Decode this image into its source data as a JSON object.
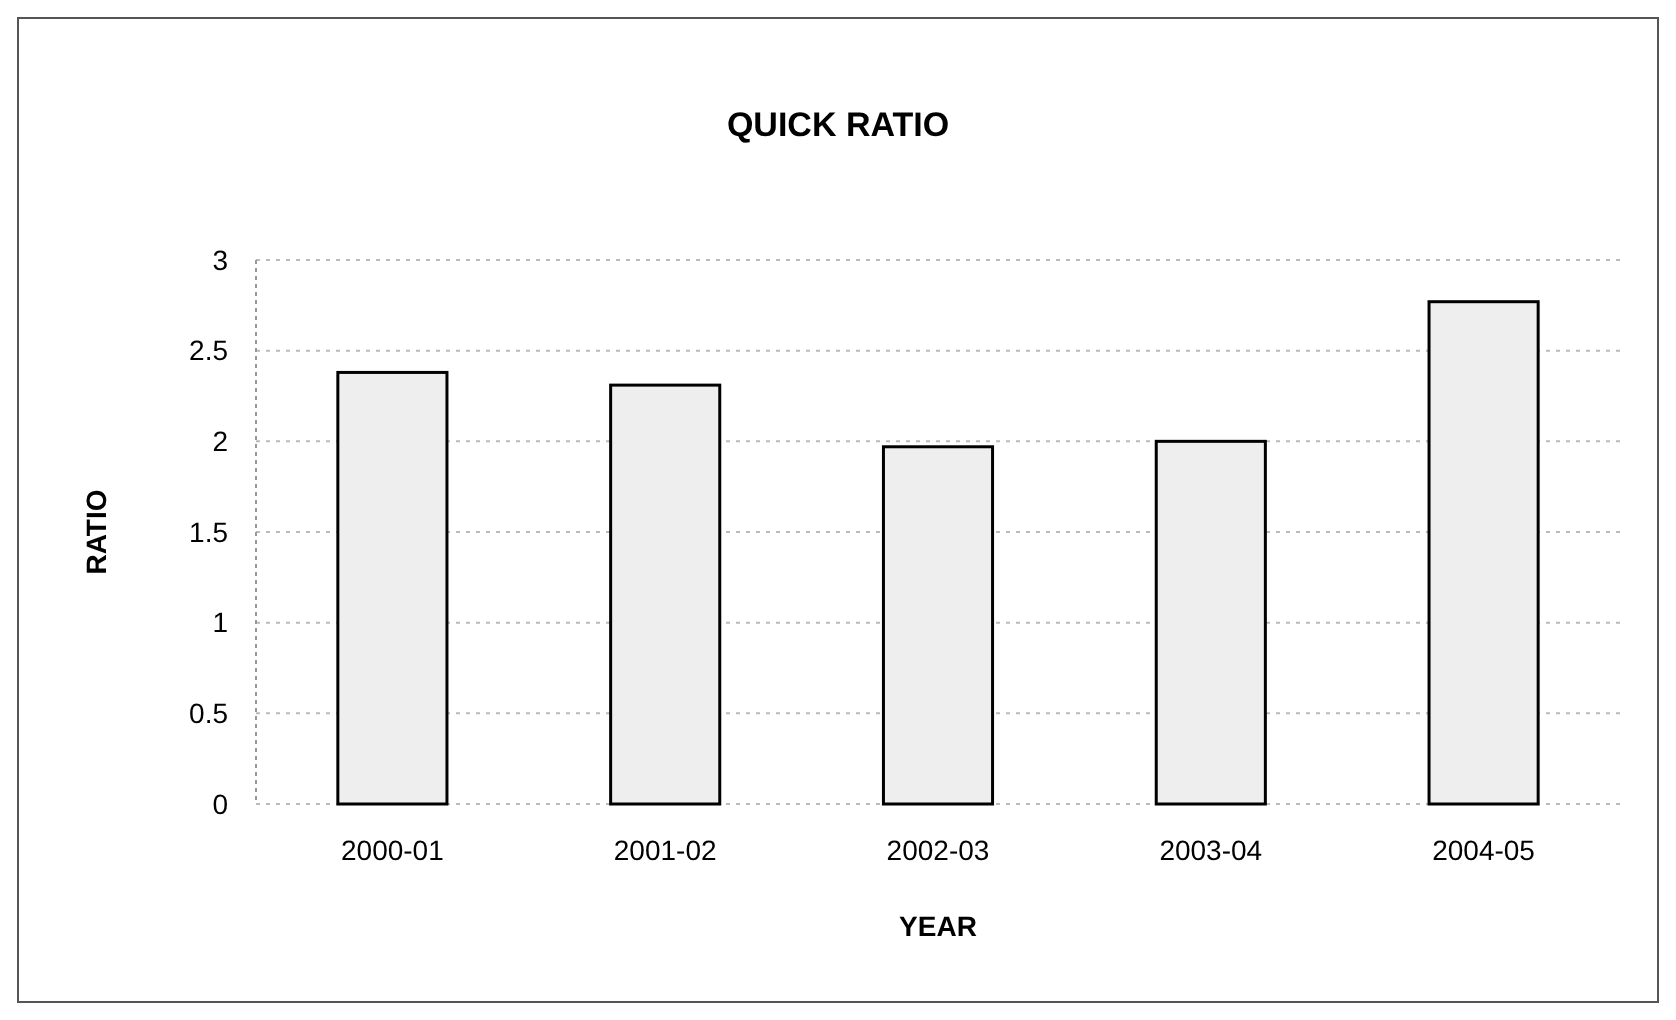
{
  "chart_data": {
    "type": "bar",
    "title": "QUICK RATIO",
    "xlabel": "YEAR",
    "ylabel": "RATIO",
    "categories": [
      "2000-01",
      "2001-02",
      "2002-03",
      "2003-04",
      "2004-05"
    ],
    "values": [
      2.38,
      2.31,
      1.97,
      2.0,
      2.77
    ],
    "color": "#eeeeee",
    "ylim": [
      0,
      3
    ],
    "yticks": [
      0,
      0.5,
      1,
      1.5,
      2,
      2.5,
      3
    ],
    "grid": "y"
  }
}
